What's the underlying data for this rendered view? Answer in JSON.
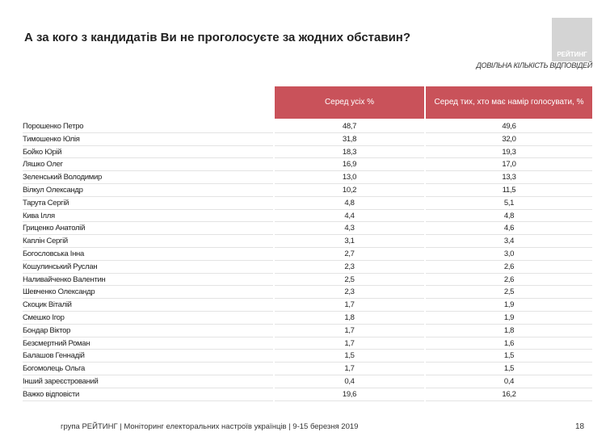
{
  "header": {
    "title": "А за кого з кандидатів Ви не проголосуєте за жодних обставин?",
    "logo": "РЕЙТИНГ",
    "subtitle": "ДОВІЛЬНА КІЛЬКІСТЬ ВІДПОВІДЕЙ"
  },
  "table": {
    "columns": [
      "Серед усіх %",
      "Серед тих, хто має намір голосувати, %"
    ],
    "rows": [
      [
        "Порошенко Петро",
        "48,7",
        "49,6"
      ],
      [
        "Тимошенко Юлія",
        "31,8",
        "32,0"
      ],
      [
        "Бойко Юрій",
        "18,3",
        "19,3"
      ],
      [
        "Ляшко Олег",
        "16,9",
        "17,0"
      ],
      [
        "Зеленський Володимир",
        "13,0",
        "13,3"
      ],
      [
        "Вілкул Олександр",
        "10,2",
        "11,5"
      ],
      [
        "Тарута Сергій",
        "4,8",
        "5,1"
      ],
      [
        "Кива Ілля",
        "4,4",
        "4,8"
      ],
      [
        "Гриценко Анатолій",
        "4,3",
        "4,6"
      ],
      [
        "Каплін Сергій",
        "3,1",
        "3,4"
      ],
      [
        "Богословська Інна",
        "2,7",
        "3,0"
      ],
      [
        "Кошулинський Руслан",
        "2,3",
        "2,6"
      ],
      [
        "Наливайченко Валентин",
        "2,5",
        "2,6"
      ],
      [
        "Шевченко Олександр",
        "2,3",
        "2,5"
      ],
      [
        "Скоцик Віталій",
        "1,7",
        "1,9"
      ],
      [
        "Смешко Ігор",
        "1,8",
        "1,9"
      ],
      [
        "Бондар Віктор",
        "1,7",
        "1,8"
      ],
      [
        "Безсмертний Роман",
        "1,7",
        "1,6"
      ],
      [
        "Балашов Геннадій",
        "1,5",
        "1,5"
      ],
      [
        "Богомолець Ольга",
        "1,7",
        "1,5"
      ],
      [
        "Інший зареєстрований",
        "0,4",
        "0,4"
      ],
      [
        "Важко відповісти",
        "19,6",
        "16,2"
      ]
    ]
  },
  "footer": {
    "text": "група РЕЙТИНГ | Моніторинг електоральних настроїв українців  | 9-15 березня 2019",
    "page": "18"
  }
}
